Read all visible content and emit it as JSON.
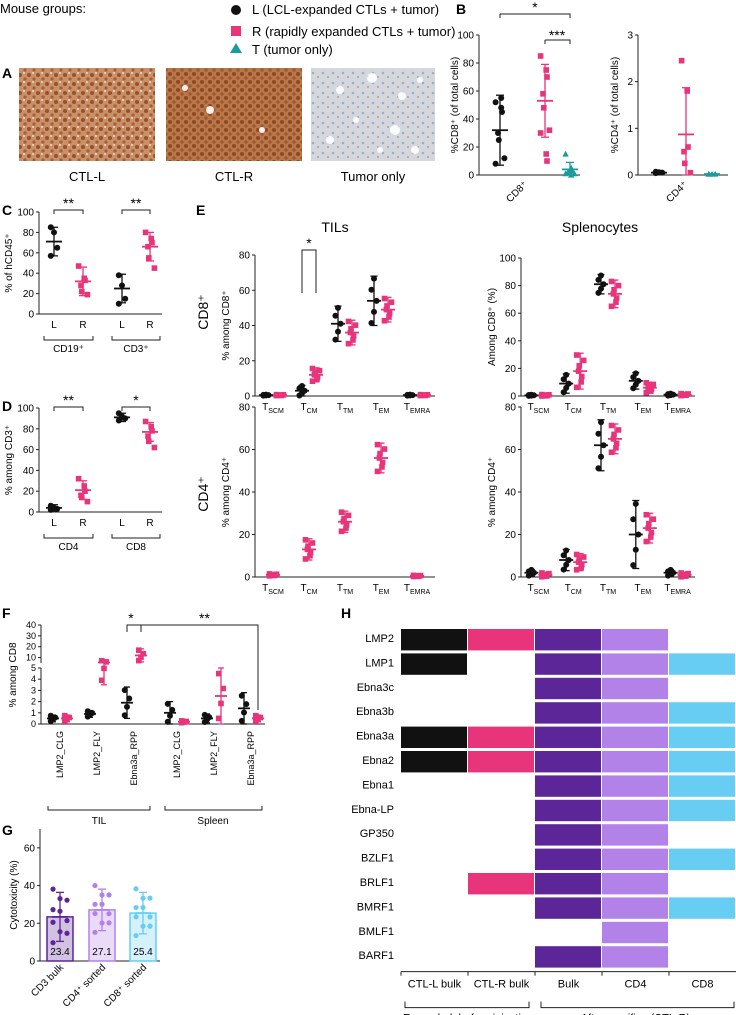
{
  "colors": {
    "L": "#111111",
    "R": "#e8347a",
    "T": "#1a9c9c",
    "bulk": "#5c2598",
    "cd4": "#b382e9",
    "cd8": "#67cdf2",
    "ihcBrown": "#a35e32",
    "ihcBlue": "#c9cfd8"
  },
  "legend": {
    "title": "Mouse groups:",
    "items": [
      {
        "key": "L",
        "shape": "circle",
        "label": "L (LCL-expanded CTLs + tumor)"
      },
      {
        "key": "R",
        "shape": "square",
        "label": "R (rapidly expanded CTLs + tumor)"
      },
      {
        "key": "T",
        "shape": "triangle",
        "label": "T (tumor only)"
      }
    ]
  },
  "panels": {
    "A": "A",
    "B": "B",
    "C": "C",
    "D": "D",
    "E": "E",
    "F": "F",
    "G": "G",
    "H": "H"
  },
  "panelA": {
    "captions": [
      "CTL-L",
      "CTL-R",
      "Tumor only"
    ]
  },
  "chart_data": [
    {
      "id": "B1",
      "type": "scatter",
      "ylabel": "%CD8⁺ (of total cells)",
      "ylim": [
        0,
        100
      ],
      "yticks": [
        0,
        20,
        40,
        60,
        80,
        100
      ],
      "categories": [
        "CD8⁺"
      ],
      "groups": [
        {
          "key": "L",
          "mean": 32,
          "sd": 25,
          "points": [
            52,
            48,
            45,
            30,
            25,
            12,
            8,
            55
          ]
        },
        {
          "key": "R",
          "mean": 53,
          "sd": 26,
          "points": [
            85,
            75,
            70,
            58,
            48,
            32,
            30,
            15,
            10
          ]
        },
        {
          "key": "T",
          "mean": 4,
          "sd": 5,
          "points": [
            15,
            5,
            3,
            2,
            2,
            1,
            1,
            0
          ]
        }
      ],
      "sig": [
        {
          "from": "L",
          "to": "T",
          "label": "*"
        },
        {
          "from": "R",
          "to": "T",
          "label": "***"
        }
      ]
    },
    {
      "id": "B2",
      "type": "scatter",
      "ylabel": "%CD4⁺ (of total cells)",
      "ylim": [
        0,
        3
      ],
      "yticks": [
        0,
        1,
        2,
        3
      ],
      "categories": [
        "CD4⁺"
      ],
      "groups": [
        {
          "key": "L",
          "mean": 0.05,
          "sd": 0.02,
          "points": [
            0.07,
            0.05,
            0.05,
            0.04,
            0.06
          ]
        },
        {
          "key": "R",
          "mean": 0.87,
          "sd": 1.0,
          "points": [
            2.45,
            1.8,
            0.6,
            0.5,
            0.25,
            0.05
          ]
        },
        {
          "key": "T",
          "mean": 0.02,
          "sd": 0.01,
          "points": [
            0.02,
            0.02,
            0.02,
            0.02
          ]
        }
      ]
    },
    {
      "id": "C",
      "type": "scatter",
      "ylabel": "% of hCD45⁺",
      "ylim": [
        0,
        100
      ],
      "yticks": [
        0,
        20,
        40,
        60,
        80,
        100
      ],
      "categories": [
        "CD19⁺",
        "CD3⁺"
      ],
      "groups": [
        {
          "cat": "CD19⁺",
          "sub": "L",
          "key": "L",
          "mean": 71,
          "sd": 14,
          "points": [
            85,
            80,
            65,
            57
          ]
        },
        {
          "cat": "CD19⁺",
          "sub": "R",
          "key": "R",
          "mean": 32,
          "sd": 14,
          "points": [
            47,
            35,
            33,
            28,
            22,
            19
          ]
        },
        {
          "cat": "CD3⁺",
          "sub": "L",
          "key": "L",
          "mean": 25,
          "sd": 14,
          "points": [
            38,
            28,
            15,
            10
          ]
        },
        {
          "cat": "CD3⁺",
          "sub": "R",
          "key": "R",
          "mean": 66,
          "sd": 14,
          "points": [
            80,
            74,
            70,
            66,
            55,
            45
          ]
        }
      ],
      "sig": [
        "**",
        "**"
      ]
    },
    {
      "id": "D",
      "type": "scatter",
      "ylabel": "% among CD3⁺",
      "ylim": [
        0,
        100
      ],
      "yticks": [
        0,
        20,
        40,
        60,
        80,
        100
      ],
      "categories": [
        "CD4",
        "CD8"
      ],
      "groups": [
        {
          "cat": "CD4",
          "sub": "L",
          "key": "L",
          "mean": 4,
          "sd": 3,
          "points": [
            6,
            4,
            3,
            2
          ]
        },
        {
          "cat": "CD4",
          "sub": "R",
          "key": "R",
          "mean": 21,
          "sd": 9,
          "points": [
            32,
            25,
            20,
            16,
            14,
            10
          ]
        },
        {
          "cat": "CD8",
          "sub": "L",
          "key": "L",
          "mean": 91,
          "sd": 4,
          "points": [
            95,
            92,
            90,
            88
          ]
        },
        {
          "cat": "CD8",
          "sub": "R",
          "key": "R",
          "mean": 77,
          "sd": 9,
          "points": [
            87,
            82,
            78,
            73,
            68,
            62
          ]
        }
      ],
      "sig": [
        "**",
        "*"
      ]
    },
    {
      "id": "E-TIL-CD8",
      "type": "scatter",
      "title": "TILs",
      "rowlabel": "CD8⁺",
      "ylabel": "% among CD8⁺",
      "ylim": [
        0,
        80
      ],
      "yticks": [
        0,
        20,
        40,
        60,
        80
      ],
      "categories": [
        "SCM",
        "CM",
        "TM",
        "EM",
        "EMRA"
      ],
      "L": {
        "means": [
          0.5,
          3,
          41,
          54,
          0.5
        ],
        "sds": [
          0.3,
          3,
          10,
          14,
          0.3
        ],
        "points": [
          [
            0.5,
            0.5,
            0.6,
            0.4
          ],
          [
            6,
            4,
            2,
            1
          ],
          [
            52,
            47,
            38,
            25
          ],
          [
            68,
            57,
            50,
            40
          ]
        ],
        "pointsEMRA": [
          0.4,
          0.5,
          0.6,
          0.5
        ]
      },
      "R": {
        "means": [
          0.5,
          12,
          36,
          49,
          0.5
        ],
        "sds": [
          0.3,
          4,
          7,
          7,
          0.3
        ],
        "points": [
          [
            0.5,
            0.6,
            0.4,
            0.5,
            0.5
          ],
          [
            18,
            14,
            12,
            11,
            9,
            7
          ],
          [
            44,
            40,
            36,
            33,
            30,
            28
          ],
          [
            58,
            53,
            49,
            46,
            43,
            40
          ]
        ],
        "pointsEMRA": [
          0.5,
          0.4,
          0.6,
          0.5,
          0.5
        ]
      },
      "sig": "*"
    },
    {
      "id": "E-SPL-CD8",
      "type": "scatter",
      "title": "Splenocytes",
      "ylabel": "Among CD8⁺ (%)",
      "ylim": [
        0,
        100
      ],
      "yticks": [
        0,
        20,
        40,
        60,
        80,
        100
      ],
      "categories": [
        "SCM",
        "CM",
        "TM",
        "EM",
        "EMRA"
      ],
      "L": {
        "means": [
          0.5,
          9,
          81,
          11,
          1
        ],
        "sds": [
          0.5,
          7,
          7,
          6,
          0.8
        ]
      },
      "R": {
        "means": [
          0.5,
          18,
          74,
          6,
          1
        ],
        "sds": [
          0.6,
          13,
          10,
          4,
          0.8
        ]
      }
    },
    {
      "id": "E-TIL-CD4",
      "type": "scatter",
      "rowlabel": "CD4⁺",
      "ylabel": "% among CD4⁺",
      "ylim": [
        0,
        80
      ],
      "yticks": [
        0,
        20,
        40,
        60,
        80
      ],
      "categories": [
        "SCM",
        "CM",
        "TM",
        "EM",
        "EMRA"
      ],
      "R": {
        "means": [
          1,
          13,
          26,
          56,
          0.5
        ],
        "sds": [
          0.5,
          5,
          5,
          7,
          0.3
        ]
      }
    },
    {
      "id": "E-SPL-CD4",
      "type": "scatter",
      "ylabel": "% among CD4⁺",
      "ylim": [
        0,
        80
      ],
      "yticks": [
        0,
        20,
        40,
        60,
        80
      ],
      "categories": [
        "SCM",
        "CM",
        "TM",
        "EM",
        "EMRA"
      ],
      "L": {
        "means": [
          2,
          8,
          62,
          20,
          2
        ],
        "sds": [
          1.5,
          5,
          12,
          16,
          1.5
        ]
      },
      "R": {
        "means": [
          1,
          7,
          65,
          23,
          1
        ],
        "sds": [
          1,
          4,
          7,
          7,
          1
        ]
      }
    },
    {
      "id": "F",
      "type": "scatter",
      "ylabel": "% among CD8",
      "yticks_lower": [
        0,
        1,
        2,
        3,
        4,
        5
      ],
      "yticks_upper": [
        10,
        20,
        30,
        40
      ],
      "xlabels": [
        "LMP2_CLG",
        "LMP2_FLY",
        "Ebna3a_RPP",
        "LMP2_CLG",
        "LMP2_FLY",
        "Ebna3a_RPP"
      ],
      "groups_label": [
        "TIL",
        "Spleen"
      ],
      "L": {
        "means": [
          0.5,
          0.9,
          1.9,
          1.0,
          0.5,
          1.4
        ],
        "sds": [
          0.3,
          0.3,
          1.4,
          1.0,
          0.4,
          1.4
        ]
      },
      "R": {
        "means": [
          0.5,
          5.5,
          12,
          0.2,
          2.5,
          0.5
        ],
        "sds": [
          0.3,
          2.0,
          6,
          0.1,
          2.5,
          0.3
        ]
      },
      "sig": [
        "*",
        "**"
      ]
    },
    {
      "id": "G",
      "type": "bar",
      "ylabel": "Cytotoxicity (%)",
      "ylim": [
        0,
        70
      ],
      "yticks": [
        0,
        20,
        40,
        60
      ],
      "categories": [
        "CD3 bulk",
        "CD4⁺ sorted",
        "CD8⁺ sorted"
      ],
      "values": [
        23.4,
        27.1,
        25.4
      ],
      "labels": [
        "23.4",
        "27.1",
        "25.4"
      ],
      "sds": [
        13,
        11,
        11
      ]
    },
    {
      "id": "H",
      "type": "heatmap",
      "rows": [
        "LMP2",
        "LMP1",
        "Ebna3c",
        "Ebna3b",
        "Ebna3a",
        "Ebna2",
        "Ebna1",
        "Ebna-LP",
        "GP350",
        "BZLF1",
        "BRLF1",
        "BMRF1",
        "BMLF1",
        "BARF1"
      ],
      "columns": [
        "CTL-L bulk",
        "CTL-R bulk",
        "Bulk",
        "CD4",
        "CD8"
      ],
      "groups": [
        "Expanded, before injection",
        "After sacrifice (CTL-R)"
      ],
      "matrix": [
        [
          1,
          1,
          1,
          1,
          0
        ],
        [
          1,
          0,
          1,
          1,
          1
        ],
        [
          0,
          0,
          1,
          1,
          0
        ],
        [
          0,
          0,
          1,
          1,
          1
        ],
        [
          1,
          1,
          1,
          1,
          1
        ],
        [
          1,
          1,
          1,
          1,
          1
        ],
        [
          0,
          0,
          1,
          1,
          1
        ],
        [
          0,
          0,
          1,
          1,
          1
        ],
        [
          0,
          0,
          1,
          1,
          0
        ],
        [
          0,
          0,
          1,
          1,
          1
        ],
        [
          0,
          1,
          1,
          1,
          0
        ],
        [
          0,
          0,
          1,
          1,
          1
        ],
        [
          0,
          0,
          0,
          1,
          0
        ],
        [
          0,
          0,
          1,
          1,
          0
        ]
      ]
    }
  ]
}
